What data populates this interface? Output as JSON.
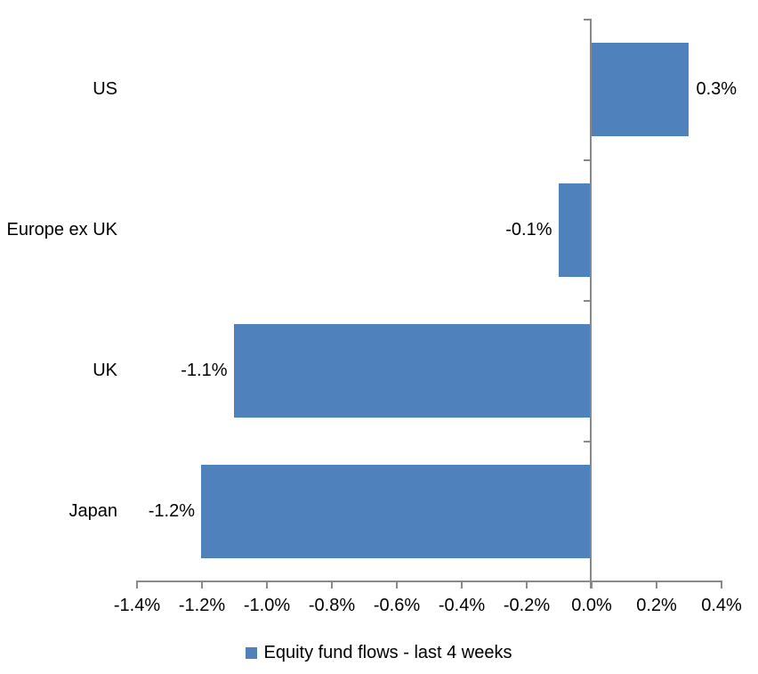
{
  "chart_data": {
    "type": "bar",
    "orientation": "horizontal",
    "title": "",
    "categories": [
      "US",
      "Europe ex UK",
      "UK",
      "Japan"
    ],
    "values": [
      0.3,
      -0.1,
      -1.1,
      -1.2
    ],
    "data_labels": [
      "0.3%",
      "-0.1%",
      "-1.1%",
      "-1.2%"
    ],
    "series_name": "Equity fund flows - last 4 weeks",
    "xlabel": "",
    "ylabel": "",
    "x_tick_labels": [
      "-1.4%",
      "-1.2%",
      "-1.0%",
      "-0.8%",
      "-0.6%",
      "-0.4%",
      "-0.2%",
      "0.0%",
      "0.2%",
      "0.4%"
    ],
    "xlim": [
      -1.4,
      0.4
    ],
    "x_tick_step": 0.2,
    "grid": false,
    "legend_position": "bottom",
    "colors": {
      "bar": "#4F81BD",
      "axis": "#898989",
      "text": "#000000",
      "background": "#FFFFFF"
    }
  }
}
